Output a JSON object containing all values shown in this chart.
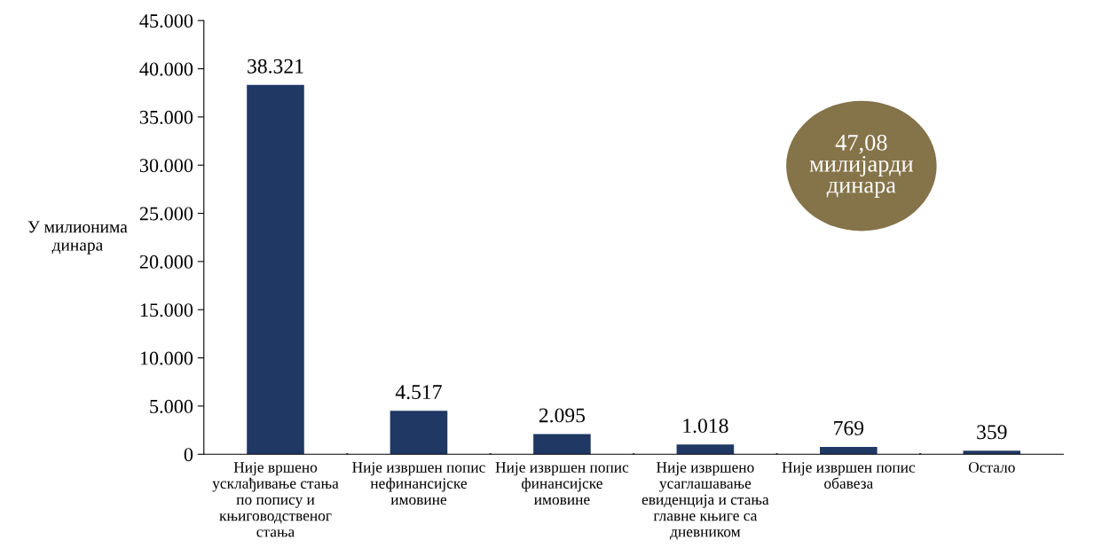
{
  "chart_data": {
    "type": "bar",
    "ylabel": "У милионима\nдинара",
    "categories": [
      "Није вршено\nусклађивање стања\nпо попису и\nкњиговодственог\nстања",
      "Није извршен попис\nнефинансијске\nимовине",
      "Није извршен попис\nфинансијске\nимовине",
      "Није извршено\nусаглашавање\nевиденција и стања\nглавне књиге са\nдневником",
      "Није извршен попис\nобавеза",
      "Остало"
    ],
    "values": [
      38321,
      4517,
      2095,
      1018,
      769,
      359
    ],
    "value_labels": [
      "38.321",
      "4.517",
      "2.095",
      "1.018",
      "769",
      "359"
    ],
    "color": "#1f3864",
    "ylim": [
      0,
      45000
    ],
    "yticks": [
      {
        "value": 0,
        "label": "0"
      },
      {
        "value": 5000,
        "label": "5.000"
      },
      {
        "value": 10000,
        "label": "10.000"
      },
      {
        "value": 15000,
        "label": "15.000"
      },
      {
        "value": 20000,
        "label": "20.000"
      },
      {
        "value": 25000,
        "label": "25.000"
      },
      {
        "value": 30000,
        "label": "30.000"
      },
      {
        "value": 35000,
        "label": "35.000"
      },
      {
        "value": 40000,
        "label": "40.000"
      },
      {
        "value": 45000,
        "label": "45.000"
      }
    ],
    "grid": false,
    "legend": false,
    "annotations": [
      "47,08\nмилијарди\nдинара"
    ]
  }
}
